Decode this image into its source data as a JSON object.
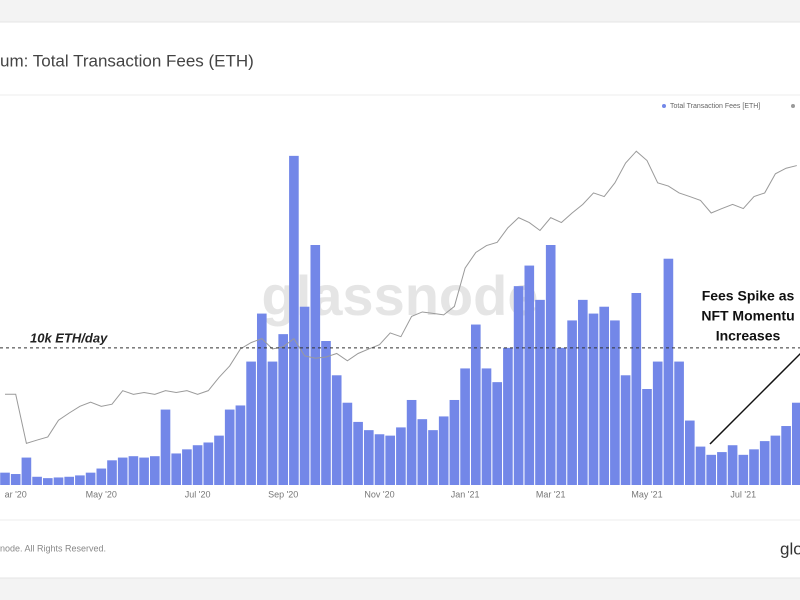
{
  "chart_data": {
    "type": "bar",
    "title": "um: Total Transaction Fees (ETH)",
    "watermark": "glassnode",
    "footer": "node. All Rights Reserved.",
    "logo": "glo",
    "threshold": {
      "value": 10000,
      "label": "10k ETH/day"
    },
    "annotation": [
      "Fees Spike as",
      "NFT Momentu",
      "Increases"
    ],
    "categories": [
      null,
      "ar '20",
      null,
      null,
      null,
      null,
      null,
      null,
      null,
      "May '20",
      null,
      null,
      null,
      null,
      null,
      null,
      null,
      null,
      "Jul '20",
      null,
      null,
      null,
      null,
      null,
      null,
      null,
      "Sep '20",
      null,
      null,
      null,
      null,
      null,
      null,
      null,
      null,
      "Nov '20",
      null,
      null,
      null,
      null,
      null,
      null,
      null,
      "Jan '21",
      null,
      null,
      null,
      null,
      null,
      null,
      null,
      "Mar '21",
      null,
      null,
      null,
      null,
      null,
      null,
      null,
      null,
      "May '21",
      null,
      null,
      null,
      null,
      null,
      null,
      null,
      null,
      "Jul '21",
      null,
      null,
      null,
      null,
      null
    ],
    "series": [
      {
        "name": "Total Transaction Fees [ETH]",
        "color": "#7387e8",
        "values": [
          900,
          800,
          2000,
          600,
          500,
          550,
          600,
          700,
          900,
          1200,
          1800,
          2000,
          2100,
          2000,
          2100,
          5500,
          2300,
          2600,
          2900,
          3100,
          3600,
          5500,
          5800,
          9000,
          12500,
          9000,
          11000,
          24000,
          13000,
          17500,
          10500,
          8000,
          6000,
          4600,
          4000,
          3700,
          3600,
          4200,
          6200,
          4800,
          4000,
          5000,
          6200,
          8500,
          11700,
          8500,
          7500,
          10000,
          14500,
          16000,
          13500,
          17500,
          10000,
          12000,
          13500,
          12500,
          13000,
          12000,
          8000,
          14000,
          7000,
          9000,
          16500,
          9000,
          4700,
          2800,
          2200,
          2400,
          2900,
          2200,
          2600,
          3200,
          3600,
          4300,
          6000
        ]
      },
      {
        "type": "line",
        "axis": "y2",
        "color": "#9a9a9a",
        "values": [
          230,
          230,
          130,
          135,
          140,
          170,
          185,
          200,
          210,
          200,
          205,
          240,
          230,
          235,
          230,
          240,
          235,
          240,
          230,
          240,
          280,
          320,
          390,
          420,
          440,
          390,
          400,
          440,
          360,
          350,
          355,
          370,
          340,
          370,
          390,
          410,
          470,
          450,
          570,
          600,
          590,
          580,
          640,
          1000,
          1200,
          1300,
          1350,
          1600,
          1800,
          1700,
          1550,
          1800,
          1700,
          1900,
          2100,
          2400,
          2300,
          2700,
          3400,
          3900,
          3500,
          2700,
          2600,
          2400,
          2300,
          2200,
          1900,
          2000,
          2100,
          2000,
          2300,
          2400,
          3000,
          3200,
          3300
        ]
      }
    ],
    "ylim": [
      0,
      28000
    ],
    "y2lim": [
      80,
      7000
    ],
    "y2scale": "log",
    "legend": "top-right"
  }
}
